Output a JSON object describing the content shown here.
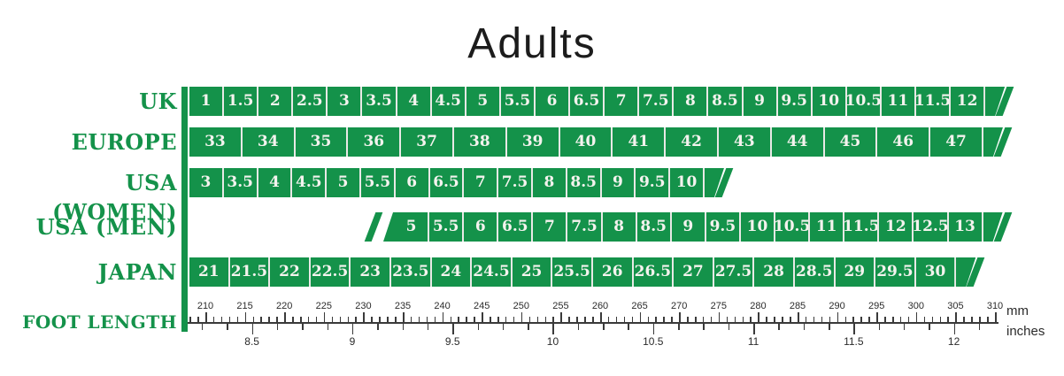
{
  "colors": {
    "green": "#14924a",
    "cell_text": "#f4f3ee",
    "divider": "#e9e9e6",
    "ruler": "#3a3a3a",
    "title_text": "#1c1c1c"
  },
  "chart_data": {
    "type": "table",
    "title": "Adults",
    "rows": [
      {
        "label": "UK",
        "values": [
          1,
          1.5,
          2,
          2.5,
          3,
          3.5,
          4,
          4.5,
          5,
          5.5,
          6,
          6.5,
          7,
          7.5,
          8,
          8.5,
          9,
          9.5,
          10,
          10.5,
          11,
          11.5,
          12
        ]
      },
      {
        "label": "EUROPE",
        "values": [
          33,
          34,
          35,
          36,
          37,
          38,
          39,
          40,
          41,
          42,
          43,
          44,
          45,
          46,
          47
        ]
      },
      {
        "label": "USA (WOMEN)",
        "values": [
          3,
          3.5,
          4,
          4.5,
          5,
          5.5,
          6,
          6.5,
          7,
          7.5,
          8,
          8.5,
          9,
          9.5,
          10
        ]
      },
      {
        "label": "USA (MEN)",
        "values": [
          5,
          5.5,
          6,
          6.5,
          7,
          7.5,
          8,
          8.5,
          9,
          9.5,
          10,
          10.5,
          11,
          11.5,
          12,
          12.5,
          13
        ]
      },
      {
        "label": "JAPAN",
        "values": [
          21,
          21.5,
          22,
          22.5,
          23,
          23.5,
          24,
          24.5,
          25,
          25.5,
          26,
          26.5,
          27,
          27.5,
          28,
          28.5,
          29,
          29.5,
          30
        ]
      }
    ],
    "foot_length": {
      "label": "FOOT LENGTH",
      "mm_ticks": [
        210,
        215,
        220,
        225,
        230,
        235,
        240,
        245,
        250,
        255,
        260,
        265,
        270,
        275,
        280,
        285,
        290,
        295,
        300,
        305,
        310
      ],
      "mm_unit": "mm",
      "inch_ticks": [
        8.5,
        9,
        9.5,
        10,
        10.5,
        11,
        11.5,
        12
      ],
      "inch_unit": "inches",
      "axis_ranges": {
        "mm": [
          210,
          310
        ],
        "inches": [
          8.5,
          12
        ]
      }
    }
  }
}
